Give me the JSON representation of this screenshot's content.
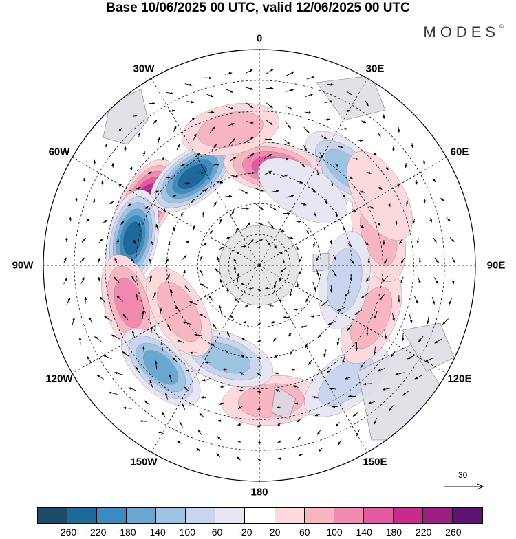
{
  "title": "Base 10/06/2025 00 UTC, valid 12/06/2025 00 UTC",
  "brand": "MODES",
  "brand_mark": "©",
  "map": {
    "projection": "south-polar-stereographic",
    "longitude_labels": [
      "0",
      "30E",
      "60E",
      "90E",
      "120E",
      "150E",
      "180",
      "150W",
      "120W",
      "90W",
      "60W",
      "30W"
    ]
  },
  "reference_vector": {
    "value": "30",
    "icon": "arrow-right-icon"
  },
  "colorbar": {
    "colors": [
      "#1f4b6b",
      "#1d6a9a",
      "#3b8bc0",
      "#6aa7d0",
      "#9ec3e3",
      "#c9d5ee",
      "#e8e6f3",
      "#ffffff",
      "#fbd9dc",
      "#f8b6c2",
      "#f08ab0",
      "#e45aa1",
      "#c92a8e",
      "#9c1f86",
      "#5e1370"
    ],
    "labels": [
      "-260",
      "-220",
      "-180",
      "-140",
      "-100",
      "-60",
      "-20",
      "20",
      "60",
      "100",
      "140",
      "180",
      "220",
      "260"
    ]
  },
  "anomaly_centers": [
    {
      "lon": -62,
      "lat": -48,
      "value": 240
    },
    {
      "lon": -37,
      "lat": -54,
      "value": -220
    },
    {
      "lon": -78,
      "lat": -48,
      "value": -250
    },
    {
      "lon": -106,
      "lat": -46,
      "value": 120
    },
    {
      "lon": -136,
      "lat": -44,
      "value": -170
    },
    {
      "lon": 175,
      "lat": -46,
      "value": 90
    },
    {
      "lon": 143,
      "lat": -43,
      "value": -60
    },
    {
      "lon": 115,
      "lat": -50,
      "value": 90
    },
    {
      "lon": 75,
      "lat": -50,
      "value": 70
    },
    {
      "lon": 42,
      "lat": -48,
      "value": -120
    },
    {
      "lon": 8,
      "lat": -58,
      "value": 140
    },
    {
      "lon": -12,
      "lat": -45,
      "value": 60
    },
    {
      "lon": 100,
      "lat": -62,
      "value": -60
    },
    {
      "lon": 30,
      "lat": -62,
      "value": -40
    },
    {
      "lon": -160,
      "lat": -58,
      "value": -110
    },
    {
      "lon": -120,
      "lat": -60,
      "value": 80
    },
    {
      "lon": 60,
      "lat": -45,
      "value": 40
    }
  ]
}
